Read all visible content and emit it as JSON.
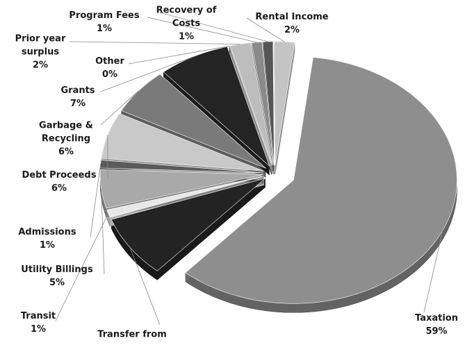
{
  "chart_data": {
    "type": "pie",
    "categories": [
      "Taxation",
      "Transfer from",
      "Transit",
      "Utility Billings",
      "Admissions",
      "Debt Proceeds",
      "Garbage & Recycling",
      "Grants",
      "Other",
      "Prior year surplus",
      "Program Fees",
      "Recovery of Costs",
      "Rental Income"
    ],
    "values": [
      59,
      8,
      1,
      5,
      1,
      6,
      6,
      7,
      0,
      2,
      1,
      1,
      2
    ],
    "value_labels": [
      "59%",
      null,
      "1%",
      "5%",
      "1%",
      "6%",
      "6%",
      "7%",
      "0%",
      "2%",
      "1%",
      "1%",
      "2%"
    ],
    "colors": [
      "#8e8e8e",
      "#232323",
      "#e8e8e8",
      "#a9a9a9",
      "#5a5a5a",
      "#c9c9c9",
      "#7a7a7a",
      "#242424",
      "#444444",
      "#bdbdbd",
      "#8a8a8a",
      "#555555",
      "#c4c4c4"
    ]
  }
}
